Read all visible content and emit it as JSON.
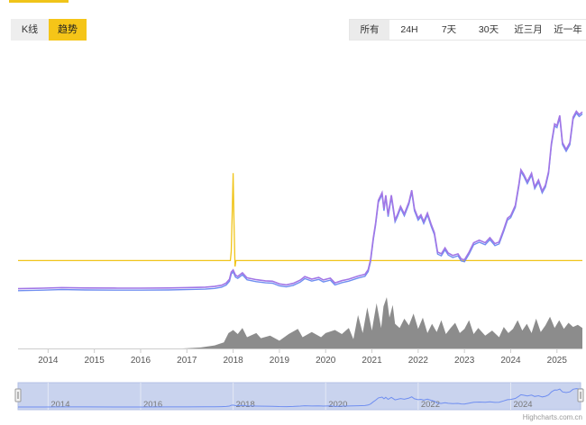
{
  "view_toggle": {
    "kline_label": "K线",
    "trend_label": "趋势",
    "active": "trend"
  },
  "range_buttons": [
    {
      "label": "所有",
      "active": true
    },
    {
      "label": "24H",
      "active": false
    },
    {
      "label": "7天",
      "active": false
    },
    {
      "label": "30天",
      "active": false
    },
    {
      "label": "近三月",
      "active": false
    },
    {
      "label": "近一年",
      "active": false
    }
  ],
  "navigator_years": [
    "2014",
    "2016",
    "2018",
    "2020",
    "2022",
    "2024"
  ],
  "credit": "Highcharts.com.cn",
  "colors": {
    "accent": "#f5c518",
    "price_line": "#a276e6",
    "price_line2": "#6f8ef0",
    "flat_line": "#f0c419",
    "volume": "#8c8c8c",
    "navigator_fill": "#c9d3ee",
    "navigator_line": "#6f8ef0"
  },
  "chart_data": {
    "type": "line",
    "x_ticks": [
      "2014",
      "2015",
      "2016",
      "2017",
      "2018",
      "2019",
      "2020",
      "2021",
      "2022",
      "2023",
      "2024",
      "2025"
    ],
    "x_range": [
      2013.35,
      2025.55
    ],
    "price_series": [
      [
        2013.35,
        0.0
      ],
      [
        2013.9,
        0.3
      ],
      [
        2014.3,
        0.6
      ],
      [
        2014.8,
        0.4
      ],
      [
        2015.5,
        0.3
      ],
      [
        2016.0,
        0.3
      ],
      [
        2016.6,
        0.4
      ],
      [
        2017.0,
        0.6
      ],
      [
        2017.4,
        0.9
      ],
      [
        2017.6,
        1.3
      ],
      [
        2017.75,
        2.0
      ],
      [
        2017.85,
        3.3
      ],
      [
        2017.92,
        5.5
      ],
      [
        2017.96,
        9.8
      ],
      [
        2018.0,
        11.0
      ],
      [
        2018.05,
        8.0
      ],
      [
        2018.1,
        7.2
      ],
      [
        2018.2,
        9.3
      ],
      [
        2018.3,
        6.4
      ],
      [
        2018.5,
        5.3
      ],
      [
        2018.7,
        4.6
      ],
      [
        2018.85,
        4.4
      ],
      [
        2019.0,
        2.8
      ],
      [
        2019.15,
        2.2
      ],
      [
        2019.3,
        3.1
      ],
      [
        2019.45,
        5.0
      ],
      [
        2019.55,
        7.1
      ],
      [
        2019.7,
        5.6
      ],
      [
        2019.85,
        6.6
      ],
      [
        2019.95,
        5.1
      ],
      [
        2020.1,
        6.2
      ],
      [
        2020.2,
        3.4
      ],
      [
        2020.35,
        4.7
      ],
      [
        2020.5,
        5.6
      ],
      [
        2020.7,
        7.4
      ],
      [
        2020.85,
        8.4
      ],
      [
        2020.92,
        11.2
      ],
      [
        2020.97,
        17.0
      ],
      [
        2021.03,
        30.0
      ],
      [
        2021.08,
        38.5
      ],
      [
        2021.14,
        52.0
      ],
      [
        2021.22,
        56.5
      ],
      [
        2021.26,
        47.0
      ],
      [
        2021.3,
        55.0
      ],
      [
        2021.35,
        43.5
      ],
      [
        2021.42,
        55.0
      ],
      [
        2021.5,
        40.5
      ],
      [
        2021.55,
        43.5
      ],
      [
        2021.62,
        48.5
      ],
      [
        2021.7,
        44.0
      ],
      [
        2021.8,
        51.0
      ],
      [
        2021.86,
        58.0
      ],
      [
        2021.92,
        47.0
      ],
      [
        2022.0,
        41.5
      ],
      [
        2022.06,
        43.5
      ],
      [
        2022.12,
        39.5
      ],
      [
        2022.2,
        44.5
      ],
      [
        2022.28,
        38.0
      ],
      [
        2022.35,
        33.0
      ],
      [
        2022.42,
        21.5
      ],
      [
        2022.5,
        20.5
      ],
      [
        2022.58,
        24.0
      ],
      [
        2022.65,
        21.0
      ],
      [
        2022.75,
        19.5
      ],
      [
        2022.86,
        20.5
      ],
      [
        2022.93,
        17.5
      ],
      [
        2023.0,
        17.0
      ],
      [
        2023.1,
        21.5
      ],
      [
        2023.2,
        27.0
      ],
      [
        2023.32,
        28.5
      ],
      [
        2023.45,
        27.0
      ],
      [
        2023.55,
        30.0
      ],
      [
        2023.66,
        26.5
      ],
      [
        2023.75,
        27.5
      ],
      [
        2023.85,
        35.0
      ],
      [
        2023.93,
        41.5
      ],
      [
        2024.0,
        43.0
      ],
      [
        2024.1,
        49.0
      ],
      [
        2024.18,
        62.0
      ],
      [
        2024.22,
        70.0
      ],
      [
        2024.28,
        67.5
      ],
      [
        2024.36,
        63.0
      ],
      [
        2024.45,
        68.0
      ],
      [
        2024.52,
        60.0
      ],
      [
        2024.6,
        64.0
      ],
      [
        2024.68,
        57.5
      ],
      [
        2024.75,
        61.0
      ],
      [
        2024.82,
        69.0
      ],
      [
        2024.88,
        85.5
      ],
      [
        2024.95,
        97.0
      ],
      [
        2025.0,
        96.0
      ],
      [
        2025.06,
        102.0
      ],
      [
        2025.12,
        86.0
      ],
      [
        2025.2,
        82.0
      ],
      [
        2025.28,
        86.0
      ],
      [
        2025.35,
        101.0
      ],
      [
        2025.42,
        104.5
      ],
      [
        2025.48,
        102.5
      ],
      [
        2025.55,
        104.0
      ]
    ],
    "flat_series": [
      [
        2013.35,
        16.5
      ],
      [
        2017.94,
        16.5
      ],
      [
        2017.96,
        22.0
      ],
      [
        2017.98,
        45.0
      ],
      [
        2018.0,
        68.0
      ],
      [
        2018.02,
        38.0
      ],
      [
        2018.04,
        13.0
      ],
      [
        2018.06,
        16.5
      ],
      [
        2025.55,
        16.5
      ]
    ],
    "price_range": [
      -5,
      118
    ],
    "volume_series": [
      [
        2013.35,
        0
      ],
      [
        2016.9,
        0
      ],
      [
        2017.0,
        0.5
      ],
      [
        2017.3,
        2
      ],
      [
        2017.6,
        6
      ],
      [
        2017.8,
        12
      ],
      [
        2017.9,
        30
      ],
      [
        2018.0,
        36
      ],
      [
        2018.1,
        28
      ],
      [
        2018.2,
        40
      ],
      [
        2018.3,
        22
      ],
      [
        2018.5,
        30
      ],
      [
        2018.6,
        20
      ],
      [
        2018.8,
        25
      ],
      [
        2019.0,
        15
      ],
      [
        2019.2,
        28
      ],
      [
        2019.4,
        38
      ],
      [
        2019.5,
        22
      ],
      [
        2019.7,
        32
      ],
      [
        2019.9,
        22
      ],
      [
        2020.0,
        30
      ],
      [
        2020.2,
        36
      ],
      [
        2020.35,
        28
      ],
      [
        2020.5,
        40
      ],
      [
        2020.6,
        18
      ],
      [
        2020.7,
        65
      ],
      [
        2020.8,
        30
      ],
      [
        2020.9,
        80
      ],
      [
        2021.0,
        35
      ],
      [
        2021.05,
        62
      ],
      [
        2021.1,
        88
      ],
      [
        2021.2,
        40
      ],
      [
        2021.25,
        82
      ],
      [
        2021.32,
        100
      ],
      [
        2021.38,
        60
      ],
      [
        2021.45,
        85
      ],
      [
        2021.5,
        48
      ],
      [
        2021.6,
        40
      ],
      [
        2021.7,
        58
      ],
      [
        2021.8,
        45
      ],
      [
        2021.9,
        68
      ],
      [
        2022.0,
        38
      ],
      [
        2022.1,
        60
      ],
      [
        2022.2,
        30
      ],
      [
        2022.3,
        48
      ],
      [
        2022.4,
        32
      ],
      [
        2022.5,
        55
      ],
      [
        2022.6,
        28
      ],
      [
        2022.7,
        40
      ],
      [
        2022.8,
        50
      ],
      [
        2022.9,
        30
      ],
      [
        2023.0,
        38
      ],
      [
        2023.1,
        55
      ],
      [
        2023.2,
        28
      ],
      [
        2023.3,
        40
      ],
      [
        2023.45,
        25
      ],
      [
        2023.6,
        35
      ],
      [
        2023.75,
        22
      ],
      [
        2023.85,
        42
      ],
      [
        2023.95,
        30
      ],
      [
        2024.05,
        38
      ],
      [
        2024.15,
        55
      ],
      [
        2024.25,
        35
      ],
      [
        2024.35,
        48
      ],
      [
        2024.45,
        30
      ],
      [
        2024.55,
        58
      ],
      [
        2024.65,
        32
      ],
      [
        2024.75,
        45
      ],
      [
        2024.85,
        62
      ],
      [
        2024.95,
        40
      ],
      [
        2025.05,
        55
      ],
      [
        2025.15,
        38
      ],
      [
        2025.25,
        50
      ],
      [
        2025.35,
        42
      ],
      [
        2025.45,
        46
      ],
      [
        2025.55,
        40
      ]
    ],
    "grid": false,
    "legend": "none"
  }
}
